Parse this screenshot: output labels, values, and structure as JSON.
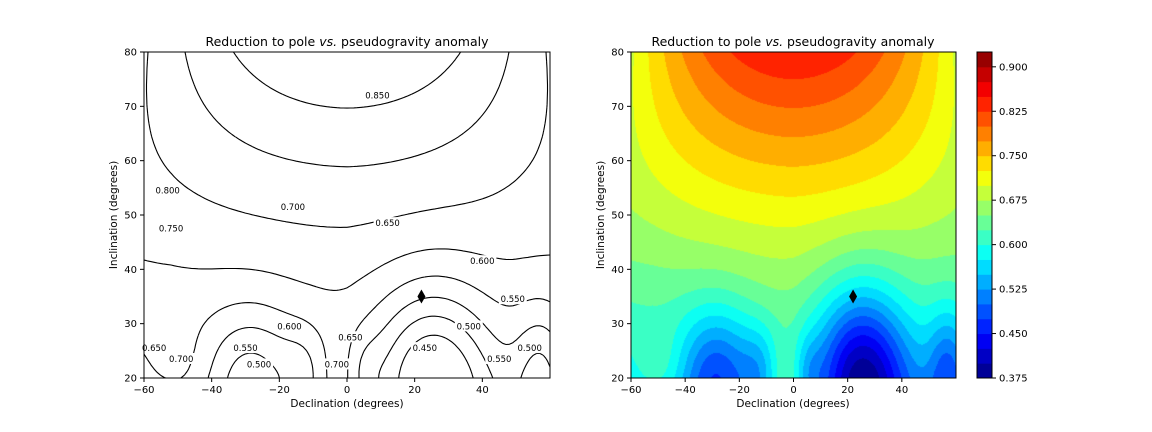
{
  "chart_data": [
    {
      "type": "contour",
      "title_prefix": "Reduction to pole ",
      "title_italic": "vs.",
      "title_suffix": " pseudogravity anomaly",
      "xlabel": "Declination (degrees)",
      "ylabel": "Inclination (degrees)",
      "xlim": [
        -60,
        60
      ],
      "ylim": [
        20,
        80
      ],
      "xticks": [
        -60,
        -40,
        -20,
        0,
        20,
        40
      ],
      "xtick_labels": [
        "−60",
        "−40",
        "−20",
        "0",
        "20",
        "40"
      ],
      "yticks": [
        20,
        30,
        40,
        50,
        60,
        70,
        80
      ],
      "ytick_labels": [
        "20",
        "30",
        "40",
        "50",
        "60",
        "70",
        "80"
      ],
      "contour_labels": [
        {
          "text": "0.850",
          "x": 9,
          "y": 72
        },
        {
          "text": "0.800",
          "x": -53,
          "y": 54.5
        },
        {
          "text": "0.750",
          "x": -52,
          "y": 47.5
        },
        {
          "text": "0.700",
          "x": -16,
          "y": 51.5
        },
        {
          "text": "0.650",
          "x": 12,
          "y": 48.5
        },
        {
          "text": "0.600",
          "x": 40,
          "y": 41.5
        },
        {
          "text": "0.550",
          "x": 49,
          "y": 34.5
        },
        {
          "text": "0.500",
          "x": 36,
          "y": 29.5
        },
        {
          "text": "0.450",
          "x": 23,
          "y": 25.5
        },
        {
          "text": "0.600",
          "x": -17,
          "y": 29.5
        },
        {
          "text": "0.650",
          "x": 1,
          "y": 27.5
        },
        {
          "text": "0.550",
          "x": -30,
          "y": 25.5
        },
        {
          "text": "0.500",
          "x": -26,
          "y": 22.5
        },
        {
          "text": "0.700",
          "x": -49,
          "y": 23.5
        },
        {
          "text": "0.700",
          "x": -3,
          "y": 22.5
        },
        {
          "text": "0.650",
          "x": -57,
          "y": 25.5
        },
        {
          "text": "0.550",
          "x": 45,
          "y": 23.5
        },
        {
          "text": "0.500",
          "x": 54,
          "y": 25.5
        }
      ],
      "marker": {
        "x": 22,
        "y": 35,
        "symbol": "diamond"
      }
    },
    {
      "type": "heatmap",
      "title_prefix": "Reduction to pole ",
      "title_italic": "vs.",
      "title_suffix": " pseudogravity anomaly",
      "xlabel": "Declination (degrees)",
      "ylabel": "Inclination (degrees)",
      "xlim": [
        -60,
        60
      ],
      "ylim": [
        20,
        80
      ],
      "xticks": [
        -60,
        -40,
        -20,
        0,
        20,
        40
      ],
      "xtick_labels": [
        "−60",
        "−40",
        "−20",
        "0",
        "20",
        "40"
      ],
      "yticks": [
        20,
        30,
        40,
        50,
        60,
        70,
        80
      ],
      "ytick_labels": [
        "20",
        "30",
        "40",
        "50",
        "60",
        "70",
        "80"
      ],
      "colormap": "jet",
      "colorbar_range": [
        0.375,
        0.925
      ],
      "colorbar_ticks": [
        0.375,
        0.45,
        0.525,
        0.6,
        0.675,
        0.75,
        0.825,
        0.9
      ],
      "colorbar_tick_labels": [
        "0.375",
        "0.450",
        "0.525",
        "0.600",
        "0.675",
        "0.750",
        "0.825",
        "0.900"
      ],
      "marker": {
        "x": 22,
        "y": 35,
        "symbol": "diamond"
      }
    }
  ]
}
